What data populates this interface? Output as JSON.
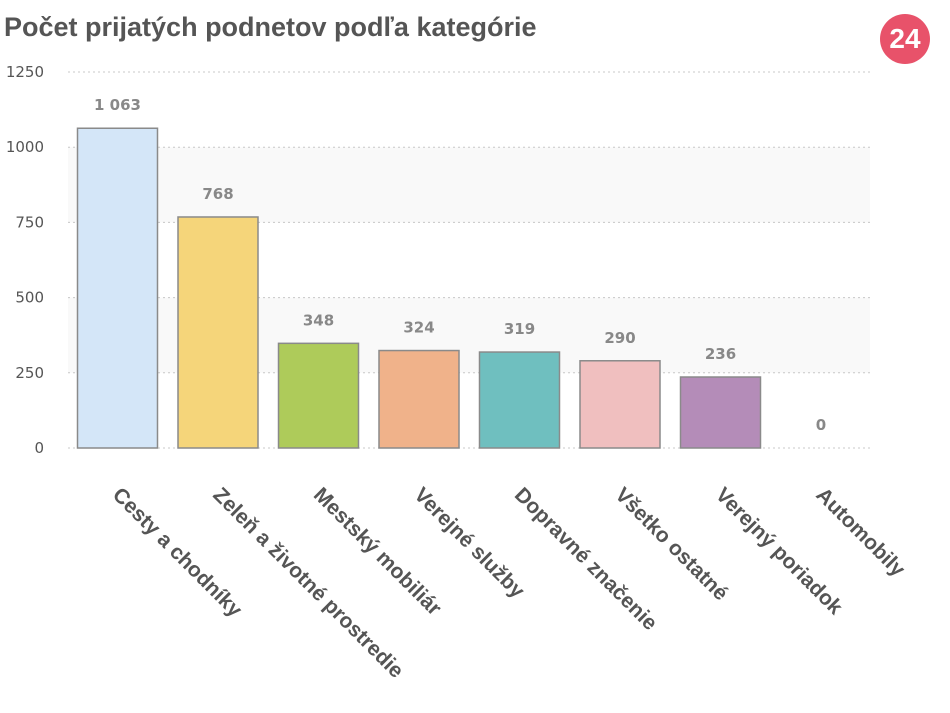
{
  "title": "Počet prijatých podnetov podľa kategórie",
  "logo": {
    "text": "24",
    "color": "#e8526a"
  },
  "chart_data": {
    "type": "bar",
    "categories": [
      "Cesty a chodníky",
      "Zeleň a životné prostredie",
      "Mestský mobiliár",
      "Verejné služby",
      "Dopravné značenie",
      "Všetko ostatné",
      "Verejný poriadok",
      "Automobily"
    ],
    "values": [
      1063,
      768,
      348,
      324,
      319,
      290,
      236,
      0
    ],
    "value_labels": [
      "1 063",
      "768",
      "348",
      "324",
      "319",
      "290",
      "236",
      "0"
    ],
    "colors": [
      "#d4e6f8",
      "#f5d57a",
      "#aecb5a",
      "#f0b28a",
      "#6fbfbf",
      "#f0bfbf",
      "#b48cb8",
      "#cccccc"
    ],
    "yticks": [
      "0",
      "250",
      "500",
      "750",
      "1000",
      "1250"
    ],
    "ylim": [
      0,
      1250
    ],
    "grid": true,
    "xlabel": "",
    "ylabel": ""
  }
}
